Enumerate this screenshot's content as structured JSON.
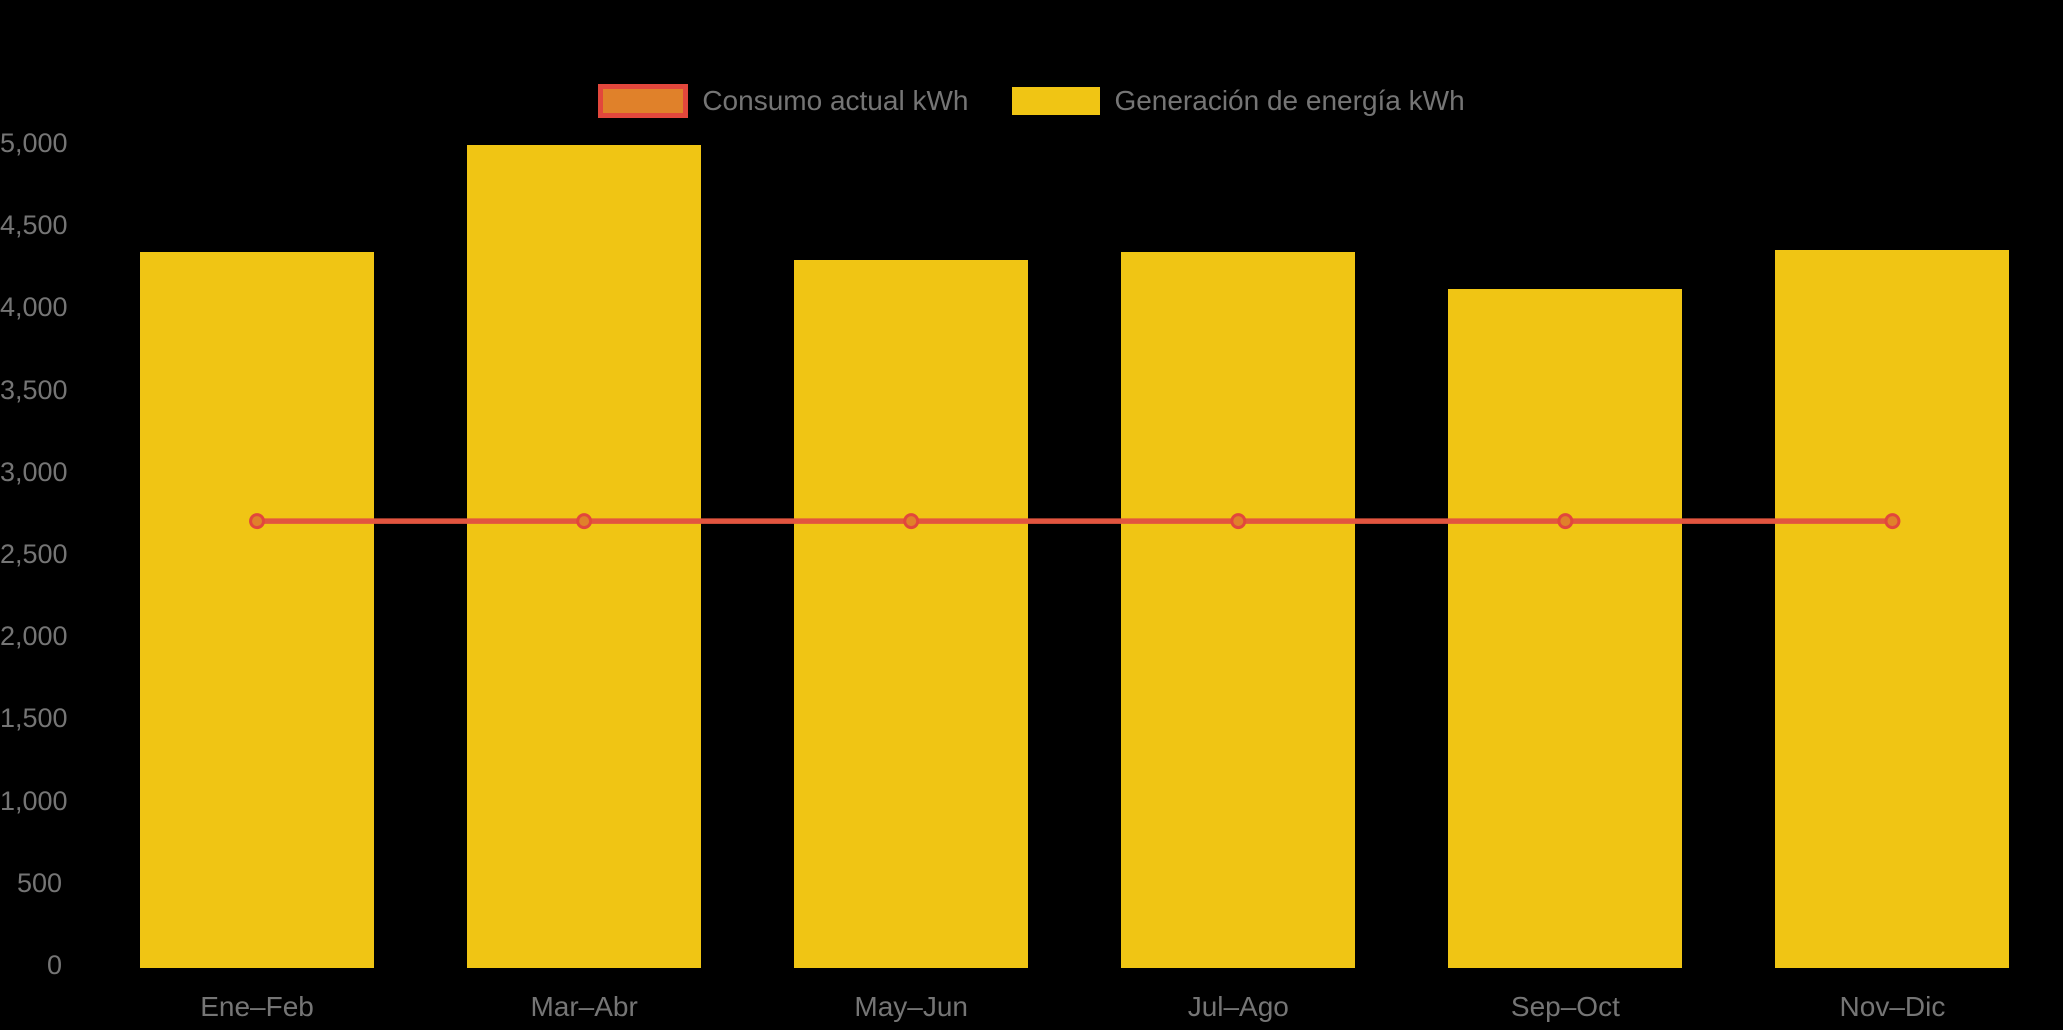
{
  "chart_data": {
    "type": "bar",
    "subtype": "bar-and-line-combo",
    "categories": [
      "Ene–Feb",
      "Mar–Abr",
      "May–Jun",
      "Jul–Ago",
      "Sep–Oct",
      "Nov–Dic"
    ],
    "series": [
      {
        "name": "Consumo actual kWh",
        "type": "line",
        "color": "#E2553F",
        "marker_fill": "#E0812A",
        "marker_stroke": "#E2473C",
        "values": [
          2700,
          2700,
          2700,
          2700,
          2700,
          2700
        ]
      },
      {
        "name": "Generación de energía kWh",
        "type": "bar",
        "color": "#F0C514",
        "values": [
          4340,
          4990,
          4290,
          4340,
          4110,
          4350
        ]
      }
    ],
    "title": "",
    "xlabel": "",
    "ylabel": "",
    "ylim": [
      0,
      5000
    ],
    "ytick_step": 500,
    "ytick_labels": [
      "0",
      "500",
      "1,000",
      "1,500",
      "2,000",
      "2,500",
      "3,000",
      "3,500",
      "4,000",
      "4,500",
      "5,000"
    ],
    "grid": false,
    "legend_position": "top-center",
    "background_color": "#000000",
    "text_color": "#757575"
  }
}
